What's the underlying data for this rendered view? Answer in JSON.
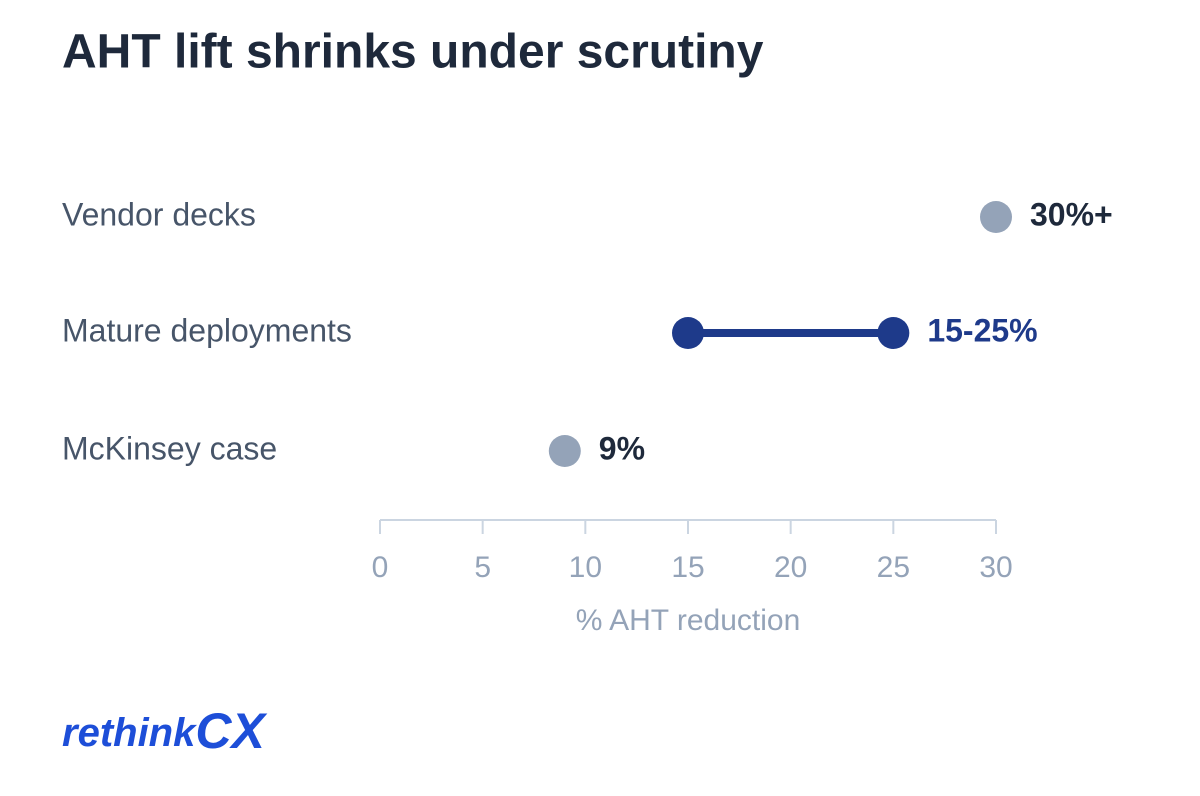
{
  "chart_data": {
    "type": "dumbbell",
    "title": "AHT lift shrinks under scrutiny",
    "categories": [
      "Vendor decks",
      "Mature deployments",
      "McKinsey case"
    ],
    "values": [
      [
        30
      ],
      [
        15,
        25
      ],
      [
        9
      ]
    ],
    "value_labels": [
      "30%+",
      "15-25%",
      "9%"
    ],
    "point_color": "#94a3b8",
    "range_color": "#1e3a8a",
    "xlim": [
      0,
      30
    ],
    "xticks": [
      0,
      5,
      10,
      15,
      20,
      25,
      30
    ],
    "xlabel": "% AHT reduction",
    "brand": "rethink",
    "brand_accent": "CX"
  }
}
